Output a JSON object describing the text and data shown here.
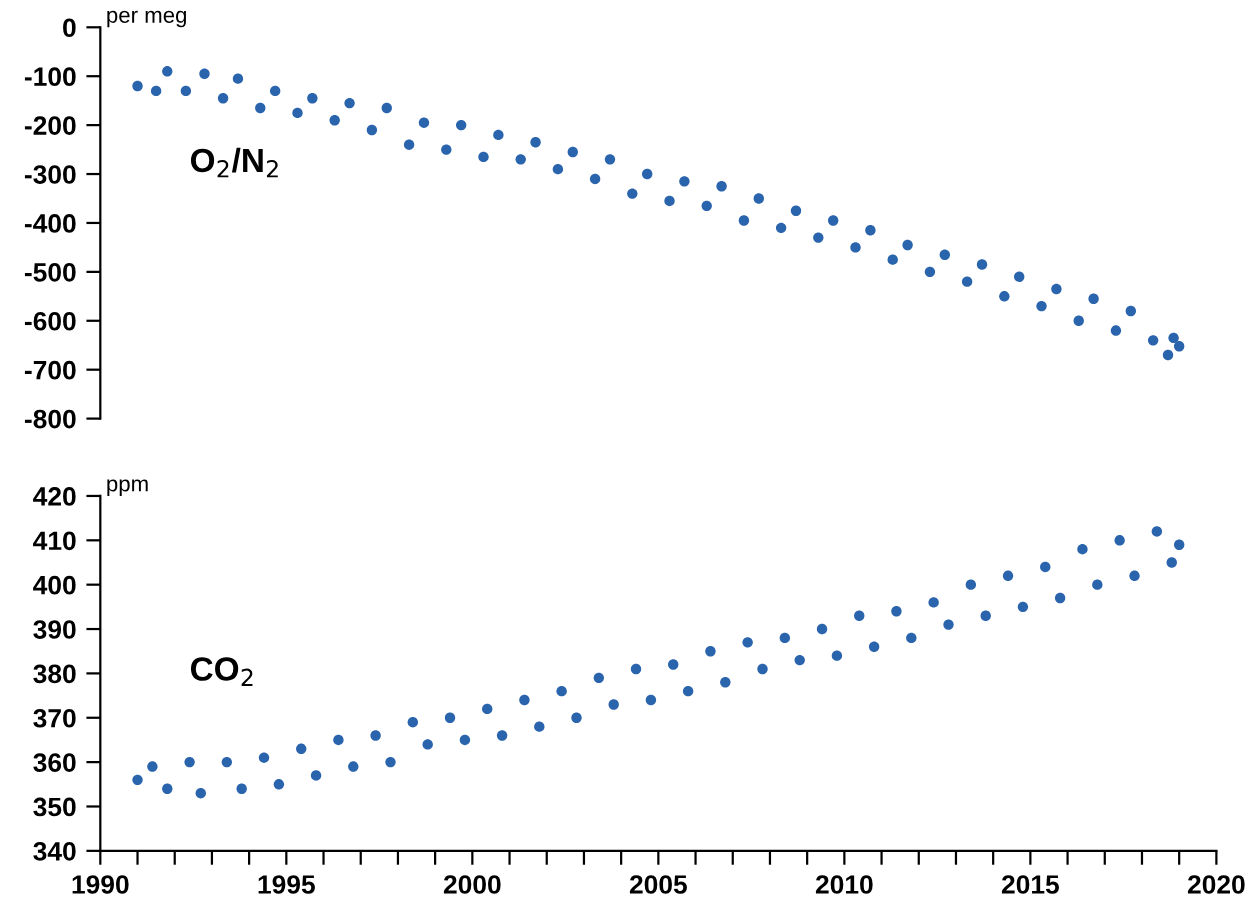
{
  "chart_data": [
    {
      "type": "scatter",
      "ylabel": "per meg",
      "annotations": [
        "O$_{2}$/N$_{2}$"
      ],
      "xlim": [
        1990,
        2020
      ],
      "ylim": [
        -800,
        0
      ],
      "yticks": [
        -800,
        -700,
        -600,
        -500,
        -400,
        -300,
        -200,
        -100,
        0
      ],
      "tick_labels": "y",
      "grid": false,
      "legend": false,
      "marker": "circle",
      "series": [
        {
          "color": "#2a64ad",
          "x": [
            1991.0,
            1991.5,
            1991.8,
            1992.3,
            1992.8,
            1993.3,
            1993.7,
            1994.3,
            1994.7,
            1995.3,
            1995.7,
            1996.3,
            1996.7,
            1997.3,
            1997.7,
            1998.3,
            1998.7,
            1999.3,
            1999.7,
            2000.3,
            2000.7,
            2001.3,
            2001.7,
            2002.3,
            2002.7,
            2003.3,
            2003.7,
            2004.3,
            2004.7,
            2005.3,
            2005.7,
            2006.3,
            2006.7,
            2007.3,
            2007.7,
            2008.3,
            2008.7,
            2009.3,
            2009.7,
            2010.3,
            2010.7,
            2011.3,
            2011.7,
            2012.3,
            2012.7,
            2013.3,
            2013.7,
            2014.3,
            2014.7,
            2015.3,
            2015.7,
            2016.3,
            2016.7,
            2017.3,
            2017.7,
            2018.3,
            2018.7,
            2018.85,
            2019.0
          ],
          "values": [
            -120,
            -130,
            -90,
            -130,
            -95,
            -145,
            -105,
            -165,
            -130,
            -175,
            -145,
            -190,
            -155,
            -210,
            -165,
            -240,
            -195,
            -250,
            -200,
            -265,
            -220,
            -270,
            -235,
            -290,
            -255,
            -310,
            -270,
            -340,
            -300,
            -355,
            -315,
            -365,
            -325,
            -395,
            -350,
            -410,
            -375,
            -430,
            -395,
            -450,
            -415,
            -475,
            -445,
            -500,
            -465,
            -520,
            -485,
            -550,
            -510,
            -570,
            -535,
            -600,
            -555,
            -620,
            -580,
            -640,
            -670,
            -635,
            -652
          ]
        }
      ]
    },
    {
      "type": "scatter",
      "ylabel": "ppm",
      "annotations": [
        "CO$_{2}$"
      ],
      "xlim": [
        1990,
        2020
      ],
      "ylim": [
        340,
        420
      ],
      "yticks": [
        340,
        350,
        360,
        370,
        380,
        390,
        400,
        410,
        420
      ],
      "grid": false,
      "legend": false,
      "marker": "circle",
      "xticks": [
        1990,
        {
          "value": 1991,
          "label": null
        },
        {
          "value": 1992,
          "label": null
        },
        {
          "value": 1993,
          "label": null
        },
        {
          "value": 1994,
          "label": null
        },
        1995,
        {
          "value": 1996,
          "label": null
        },
        {
          "value": 1997,
          "label": null
        },
        {
          "value": 1998,
          "label": null
        },
        {
          "value": 1999,
          "label": null
        },
        2000,
        {
          "value": 2001,
          "label": null
        },
        {
          "value": 2002,
          "label": null
        },
        {
          "value": 2003,
          "label": null
        },
        {
          "value": 2004,
          "label": null
        },
        2005,
        {
          "value": 2006,
          "label": null
        },
        {
          "value": 2007,
          "label": null
        },
        {
          "value": 2008,
          "label": null
        },
        {
          "value": 2009,
          "label": null
        },
        2010,
        {
          "value": 2011,
          "label": null
        },
        {
          "value": 2012,
          "label": null
        },
        {
          "value": 2013,
          "label": null
        },
        {
          "value": 2014,
          "label": null
        },
        2015,
        {
          "value": 2016,
          "label": null
        },
        {
          "value": 2017,
          "label": null
        },
        {
          "value": 2018,
          "label": null
        },
        {
          "value": 2019,
          "label": null
        },
        2020
      ],
      "series": [
        {
          "color": "#2a64ad",
          "x": [
            1991.0,
            1991.4,
            1991.8,
            1992.4,
            1992.7,
            1993.4,
            1993.8,
            1994.4,
            1994.8,
            1995.4,
            1995.8,
            1996.4,
            1996.8,
            1997.4,
            1997.8,
            1998.4,
            1998.8,
            1999.4,
            1999.8,
            2000.4,
            2000.8,
            2001.4,
            2001.8,
            2002.4,
            2002.8,
            2003.4,
            2003.8,
            2004.4,
            2004.8,
            2005.4,
            2005.8,
            2006.4,
            2006.8,
            2007.4,
            2007.8,
            2008.4,
            2008.8,
            2009.4,
            2009.8,
            2010.4,
            2010.8,
            2011.4,
            2011.8,
            2012.4,
            2012.8,
            2013.4,
            2013.8,
            2014.4,
            2014.8,
            2015.4,
            2015.8,
            2016.4,
            2016.8,
            2017.4,
            2017.8,
            2018.4,
            2018.8,
            2019.0
          ],
          "values": [
            356,
            359,
            354,
            360,
            353,
            360,
            354,
            361,
            355,
            363,
            357,
            365,
            359,
            366,
            360,
            369,
            364,
            370,
            365,
            372,
            366,
            374,
            368,
            376,
            370,
            379,
            373,
            381,
            374,
            382,
            376,
            385,
            378,
            387,
            381,
            388,
            383,
            390,
            384,
            393,
            386,
            394,
            388,
            396,
            391,
            400,
            393,
            402,
            395,
            404,
            397,
            408,
            400,
            410,
            402,
            412,
            405,
            409
          ]
        }
      ]
    }
  ]
}
